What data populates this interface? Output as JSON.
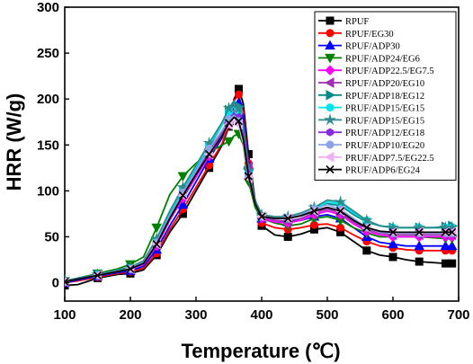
{
  "chart_data": {
    "type": "line",
    "title": "",
    "xlabel": "Temperature (℃)",
    "ylabel": "HRR (W/g)",
    "xlim": [
      100,
      700
    ],
    "ylim": [
      -20,
      300
    ],
    "xticks": [
      100,
      200,
      300,
      400,
      500,
      600,
      700
    ],
    "yticks": [
      0,
      50,
      100,
      150,
      200,
      250,
      300
    ],
    "grid": false,
    "legend_position": "top-right",
    "series": [
      {
        "name": "RPUF",
        "color": "#000000",
        "marker": "square",
        "x": [
          100,
          120,
          150,
          180,
          200,
          220,
          240,
          260,
          280,
          300,
          320,
          340,
          350,
          358,
          365,
          372,
          380,
          390,
          400,
          420,
          440,
          460,
          480,
          500,
          520,
          540,
          560,
          580,
          600,
          620,
          640,
          660,
          680,
          690
        ],
        "y": [
          -3,
          -2,
          5,
          9,
          10,
          14,
          30,
          55,
          75,
          100,
          125,
          150,
          170,
          200,
          211,
          195,
          140,
          90,
          62,
          52,
          50,
          53,
          58,
          60,
          55,
          45,
          35,
          30,
          28,
          25,
          23,
          22,
          21,
          21
        ]
      },
      {
        "name": "RPUF/EG30",
        "color": "#ff0000",
        "marker": "circle",
        "x": [
          100,
          120,
          150,
          180,
          200,
          220,
          240,
          260,
          280,
          300,
          320,
          340,
          350,
          358,
          365,
          372,
          380,
          390,
          400,
          420,
          440,
          460,
          480,
          500,
          520,
          540,
          560,
          580,
          600,
          620,
          640,
          660,
          680,
          690
        ],
        "y": [
          0,
          2,
          6,
          10,
          12,
          16,
          32,
          58,
          80,
          104,
          128,
          152,
          172,
          198,
          205,
          185,
          130,
          85,
          65,
          60,
          58,
          60,
          63,
          64,
          60,
          52,
          45,
          40,
          38,
          36,
          35,
          35,
          35,
          35
        ]
      },
      {
        "name": "RPUF/ADP30",
        "color": "#0000ff",
        "marker": "triangle-up",
        "x": [
          100,
          120,
          150,
          180,
          200,
          220,
          240,
          260,
          280,
          300,
          320,
          340,
          350,
          358,
          365,
          372,
          380,
          390,
          400,
          420,
          440,
          460,
          480,
          500,
          520,
          540,
          560,
          580,
          600,
          620,
          640,
          660,
          680,
          690
        ],
        "y": [
          0,
          3,
          7,
          11,
          13,
          18,
          36,
          62,
          85,
          110,
          135,
          158,
          176,
          192,
          196,
          180,
          128,
          88,
          70,
          66,
          66,
          68,
          72,
          74,
          70,
          60,
          50,
          44,
          42,
          40,
          40,
          40,
          40,
          40
        ]
      },
      {
        "name": "RPUF/ADP24/EG6",
        "color": "#008000",
        "marker": "triangle-down",
        "x": [
          100,
          120,
          150,
          180,
          200,
          220,
          240,
          260,
          280,
          300,
          320,
          340,
          350,
          358,
          365,
          372,
          380,
          390,
          400,
          420,
          440,
          460,
          480,
          500,
          520,
          540,
          560,
          580,
          600,
          620,
          640,
          660,
          680,
          690
        ],
        "y": [
          2,
          5,
          10,
          15,
          20,
          28,
          60,
          96,
          116,
          130,
          142,
          150,
          154,
          160,
          162,
          150,
          110,
          82,
          70,
          65,
          62,
          64,
          70,
          72,
          68,
          60,
          54,
          50,
          50,
          50,
          50,
          49,
          48,
          48
        ]
      },
      {
        "name": "RPUF/ADP22.5/EG7.5",
        "color": "#ff00ff",
        "marker": "diamond",
        "x": [
          100,
          120,
          150,
          180,
          200,
          220,
          240,
          260,
          280,
          300,
          320,
          340,
          350,
          358,
          365,
          372,
          380,
          390,
          400,
          420,
          440,
          460,
          480,
          500,
          520,
          540,
          560,
          580,
          600,
          620,
          640,
          660,
          680,
          690
        ],
        "y": [
          1,
          4,
          8,
          12,
          15,
          20,
          40,
          68,
          92,
          115,
          138,
          160,
          174,
          182,
          185,
          170,
          125,
          88,
          70,
          66,
          65,
          68,
          74,
          78,
          74,
          64,
          56,
          52,
          50,
          50,
          50,
          50,
          50,
          50
        ]
      },
      {
        "name": "RPUF/ADP20/EG10",
        "color": "#9b30b0",
        "marker": "triangle-left",
        "x": [
          100,
          120,
          150,
          180,
          200,
          220,
          240,
          260,
          280,
          300,
          320,
          340,
          350,
          358,
          365,
          372,
          380,
          390,
          400,
          420,
          440,
          460,
          480,
          500,
          520,
          540,
          560,
          580,
          600,
          620,
          640,
          660,
          680,
          690
        ],
        "y": [
          1,
          4,
          8,
          12,
          15,
          21,
          42,
          70,
          95,
          118,
          140,
          162,
          176,
          186,
          188,
          172,
          126,
          90,
          72,
          68,
          67,
          70,
          76,
          80,
          76,
          66,
          58,
          54,
          52,
          52,
          52,
          52,
          52,
          52
        ]
      },
      {
        "name": "RPUF/ADP18/EG12",
        "color": "#008b8b",
        "marker": "triangle-right",
        "x": [
          100,
          120,
          150,
          180,
          200,
          220,
          240,
          260,
          280,
          300,
          320,
          340,
          350,
          358,
          365,
          372,
          380,
          390,
          400,
          420,
          440,
          460,
          480,
          500,
          520,
          540,
          560,
          580,
          600,
          620,
          640,
          660,
          680,
          690
        ],
        "y": [
          2,
          5,
          9,
          13,
          16,
          22,
          44,
          74,
          100,
          124,
          148,
          172,
          188,
          196,
          192,
          170,
          122,
          88,
          72,
          70,
          70,
          74,
          80,
          86,
          84,
          74,
          66,
          62,
          60,
          60,
          60,
          60,
          61,
          62
        ]
      },
      {
        "name": "PRUF/ADP15/EG15",
        "color": "#00e5ee",
        "marker": "circle",
        "x": [
          100,
          120,
          150,
          180,
          200,
          220,
          240,
          260,
          280,
          300,
          320,
          340,
          350,
          358,
          365,
          372,
          380,
          390,
          400,
          420,
          440,
          460,
          480,
          500,
          520,
          540,
          560,
          580,
          600,
          620,
          640,
          660,
          680,
          690
        ],
        "y": [
          2,
          5,
          9,
          13,
          16,
          23,
          46,
          76,
          102,
          126,
          150,
          172,
          186,
          192,
          186,
          165,
          120,
          88,
          72,
          70,
          70,
          74,
          80,
          88,
          86,
          76,
          68,
          62,
          60,
          60,
          60,
          60,
          60,
          60
        ]
      },
      {
        "name": "PRUF/ADP15/EG15",
        "color": "#2e8b8b",
        "marker": "star",
        "x": [
          100,
          120,
          150,
          180,
          200,
          220,
          240,
          260,
          280,
          300,
          320,
          340,
          350,
          358,
          365,
          372,
          380,
          390,
          400,
          420,
          440,
          460,
          480,
          500,
          520,
          540,
          560,
          580,
          600,
          620,
          640,
          660,
          680,
          690
        ],
        "y": [
          2,
          5,
          9,
          14,
          17,
          24,
          48,
          78,
          104,
          128,
          152,
          175,
          190,
          198,
          190,
          168,
          122,
          90,
          74,
          72,
          72,
          76,
          82,
          90,
          88,
          78,
          68,
          62,
          60,
          60,
          60,
          60,
          60,
          60
        ]
      },
      {
        "name": "PRUF/ADP12/EG18",
        "color": "#8a2be2",
        "marker": "hexagon",
        "x": [
          100,
          120,
          150,
          180,
          200,
          220,
          240,
          260,
          280,
          300,
          320,
          340,
          350,
          358,
          365,
          372,
          380,
          390,
          400,
          420,
          440,
          460,
          480,
          500,
          520,
          540,
          560,
          580,
          600,
          620,
          640,
          660,
          680,
          690
        ],
        "y": [
          1,
          4,
          8,
          12,
          15,
          21,
          42,
          70,
          96,
          120,
          144,
          165,
          178,
          184,
          180,
          160,
          118,
          86,
          72,
          70,
          70,
          73,
          78,
          82,
          78,
          68,
          60,
          56,
          55,
          55,
          55,
          55,
          55,
          55
        ]
      },
      {
        "name": "PRUF/ADP10/EG20",
        "color": "#8ea2e8",
        "marker": "circle",
        "x": [
          100,
          120,
          150,
          180,
          200,
          220,
          240,
          260,
          280,
          300,
          320,
          340,
          350,
          358,
          365,
          372,
          380,
          390,
          400,
          420,
          440,
          460,
          480,
          500,
          520,
          540,
          560,
          580,
          600,
          620,
          640,
          660,
          680,
          690
        ],
        "y": [
          1,
          4,
          8,
          12,
          15,
          22,
          44,
          72,
          98,
          122,
          146,
          166,
          178,
          182,
          176,
          156,
          116,
          86,
          72,
          70,
          70,
          74,
          80,
          85,
          80,
          70,
          60,
          55,
          54,
          54,
          54,
          54,
          54,
          54
        ]
      },
      {
        "name": "PRUF/ADP7.5/EG22.5",
        "color": "#f0b0f0",
        "marker": "triangle-left",
        "x": [
          100,
          120,
          150,
          180,
          200,
          220,
          240,
          260,
          280,
          300,
          320,
          340,
          350,
          358,
          365,
          372,
          380,
          390,
          400,
          420,
          440,
          460,
          480,
          500,
          520,
          540,
          560,
          580,
          600,
          620,
          640,
          660,
          680,
          690
        ],
        "y": [
          1,
          4,
          8,
          12,
          15,
          21,
          42,
          70,
          95,
          118,
          140,
          160,
          172,
          176,
          172,
          152,
          114,
          86,
          72,
          70,
          70,
          73,
          78,
          82,
          78,
          68,
          60,
          56,
          55,
          55,
          55,
          55,
          55,
          55
        ]
      },
      {
        "name": "PRUF/ADP6/EG24",
        "color": "#000000",
        "marker": "x",
        "x": [
          100,
          120,
          150,
          180,
          200,
          220,
          240,
          260,
          280,
          300,
          320,
          340,
          350,
          358,
          365,
          372,
          380,
          390,
          400,
          420,
          440,
          460,
          480,
          500,
          520,
          540,
          560,
          580,
          600,
          620,
          640,
          660,
          680,
          690
        ],
        "y": [
          1,
          4,
          8,
          12,
          15,
          21,
          42,
          70,
          95,
          118,
          140,
          160,
          174,
          180,
          176,
          156,
          116,
          86,
          72,
          70,
          70,
          73,
          78,
          82,
          78,
          68,
          60,
          56,
          55,
          55,
          55,
          55,
          55,
          55
        ]
      }
    ]
  }
}
